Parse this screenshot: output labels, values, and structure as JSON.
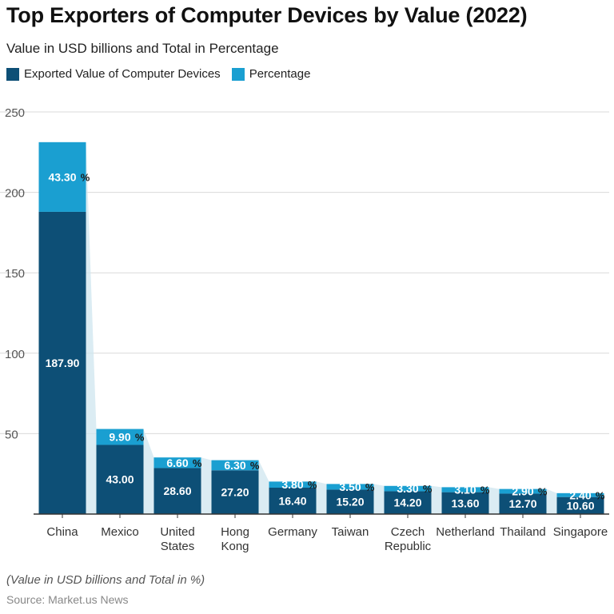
{
  "chart_data": {
    "type": "bar",
    "title": "Top Exporters of Computer Devices by Value (2022)",
    "subtitle": "Value in USD billions and Total in Percentage",
    "categories": [
      [
        "China"
      ],
      [
        "Mexico"
      ],
      [
        "United",
        "States"
      ],
      [
        "Hong",
        "Kong"
      ],
      [
        "Germany"
      ],
      [
        "Taiwan"
      ],
      [
        "Czech",
        "Republic"
      ],
      [
        "Netherland"
      ],
      [
        "Thailand"
      ],
      [
        "Singapore"
      ]
    ],
    "series": [
      {
        "name": "Exported Value of Computer Devices",
        "color": "#0d4f76",
        "values": [
          187.9,
          43.0,
          28.6,
          27.2,
          16.4,
          15.2,
          14.2,
          13.6,
          12.7,
          10.6
        ],
        "labels": [
          "187.90",
          "43.00",
          "28.60",
          "27.20",
          "16.40",
          "15.20",
          "14.20",
          "13.60",
          "12.70",
          "10.60"
        ]
      },
      {
        "name": "Percentage",
        "color": "#1a9fd1",
        "values": [
          43.3,
          9.9,
          6.6,
          6.3,
          3.8,
          3.5,
          3.3,
          3.1,
          2.9,
          2.4
        ],
        "labels": [
          "43.30",
          "9.90",
          "6.60",
          "6.30",
          "3.80",
          "3.50",
          "3.30",
          "3.10",
          "2.90",
          "2.40"
        ],
        "label_suffix": "%"
      }
    ],
    "stacked": true,
    "ylim": [
      0,
      250
    ],
    "yticks": [
      0,
      50,
      100,
      150,
      200,
      250
    ],
    "ytick_labels": [
      "",
      "50",
      "100",
      "150",
      "200",
      "250"
    ],
    "grid": true,
    "legend_position": "top-left"
  },
  "legend": {
    "item1": "Exported Value of Computer Devices",
    "item2": "Percentage"
  },
  "footer": {
    "note": "(Value in USD billions and Total in %)",
    "source": "Source: Market.us News"
  }
}
